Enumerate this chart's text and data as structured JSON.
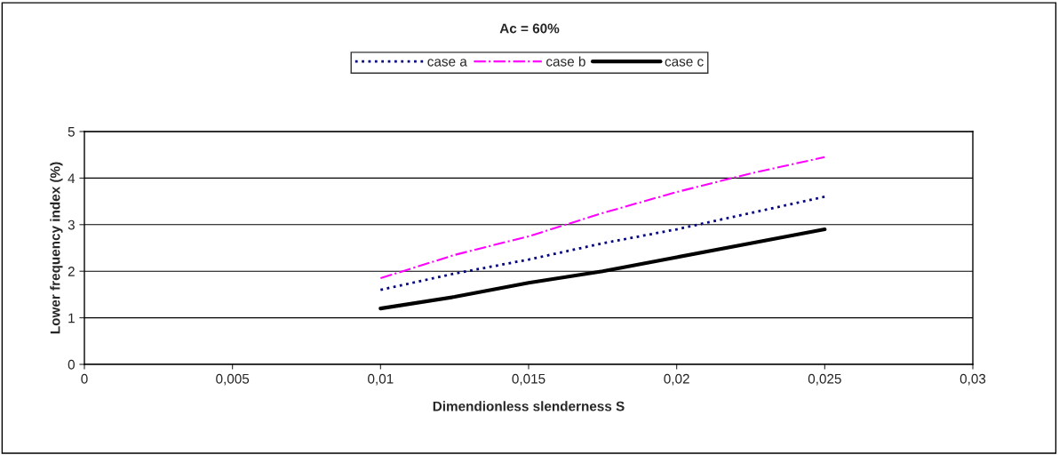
{
  "chart_data": {
    "type": "line",
    "title": "Ac = 60%",
    "xlabel": "Dimendionless slenderness S",
    "ylabel": "Lower frequency index (%)",
    "x": [
      0.01,
      0.0125,
      0.015,
      0.0175,
      0.02,
      0.0225,
      0.025
    ],
    "series": [
      {
        "name": "case a",
        "color": "#000080",
        "line_style": "dotted",
        "values": [
          1.6,
          1.95,
          2.25,
          2.6,
          2.9,
          3.25,
          3.6
        ]
      },
      {
        "name": "case b",
        "color": "#ff00ff",
        "line_style": "dashdot",
        "values": [
          1.85,
          2.35,
          2.75,
          3.25,
          3.7,
          4.1,
          4.45
        ]
      },
      {
        "name": "case c",
        "color": "#000000",
        "line_style": "solid",
        "values": [
          1.2,
          1.45,
          1.75,
          2.0,
          2.3,
          2.6,
          2.9
        ]
      }
    ],
    "xlim": [
      0,
      0.03
    ],
    "xticks": [
      0,
      {
        "value": 0.005,
        "label": "0,005"
      },
      {
        "value": 0.01,
        "label": "0,01"
      },
      {
        "value": 0.015,
        "label": "0,015"
      },
      {
        "value": 0.02,
        "label": "0,02"
      },
      {
        "value": 0.025,
        "label": "0,025"
      },
      {
        "value": 0.03,
        "label": "0,03"
      }
    ],
    "ylim": [
      0,
      5
    ],
    "yticks": [
      0,
      1,
      2,
      3,
      4,
      5
    ],
    "grid": "y",
    "legend": "top"
  }
}
